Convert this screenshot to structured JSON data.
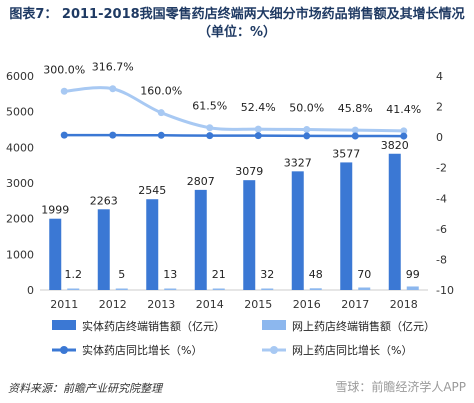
{
  "title": "图表7： 2011-2018我国零售药店终端两大细分市场药品销售额及其增长情况（单位：%）",
  "source": "资料来源：前瞻产业研究院整理",
  "watermark": "雪球：前瞻经济学人APP",
  "colors": {
    "bar1": "#3b78d4",
    "bar2": "#8cb7ee",
    "line1": "#3b78d4",
    "line2": "#a8c9f3"
  },
  "chart_data": {
    "type": "bar",
    "categories": [
      "2011",
      "2012",
      "2013",
      "2014",
      "2015",
      "2016",
      "2017",
      "2018"
    ],
    "series": [
      {
        "name": "实体药店终端销售额（亿元）",
        "type": "bar",
        "axis": "left",
        "values": [
          1999,
          2263,
          2545,
          2807,
          3079,
          3327,
          3577,
          3820
        ],
        "labels": [
          "1999",
          "2263",
          "2545",
          "2807",
          "3079",
          "3327",
          "3577",
          "3820"
        ]
      },
      {
        "name": "网上药店终端销售额（亿元）",
        "type": "bar",
        "axis": "left",
        "values": [
          1.2,
          5,
          13,
          21,
          32,
          48,
          70,
          99
        ],
        "labels": [
          "1.2",
          "5",
          "13",
          "21",
          "32",
          "48",
          "70",
          "99"
        ]
      },
      {
        "name": "实体药店同比增长（%）",
        "type": "line",
        "axis": "right",
        "values": [
          0.13,
          0.13,
          0.12,
          0.1,
          0.1,
          0.08,
          0.075,
          0.07
        ]
      },
      {
        "name": "网上药店同比增长（%）",
        "type": "line",
        "axis": "right",
        "values": [
          3.0,
          3.167,
          1.6,
          0.615,
          0.524,
          0.5,
          0.458,
          0.414
        ],
        "labels": [
          "300.0%",
          "316.7%",
          "160.0%",
          "61.5%",
          "52.4%",
          "50.0%",
          "45.8%",
          "41.4%"
        ]
      }
    ],
    "y_left": {
      "ylim": [
        0,
        6000
      ],
      "ticks": [
        "0",
        "1000",
        "2000",
        "3000",
        "4000",
        "5000",
        "6000"
      ]
    },
    "y_right": {
      "ylim": [
        -10,
        4
      ],
      "ticks": [
        "-10",
        "-8",
        "-6",
        "-4",
        "-2",
        "0",
        "2",
        "4"
      ]
    },
    "legend": "bottom",
    "grid": false
  }
}
